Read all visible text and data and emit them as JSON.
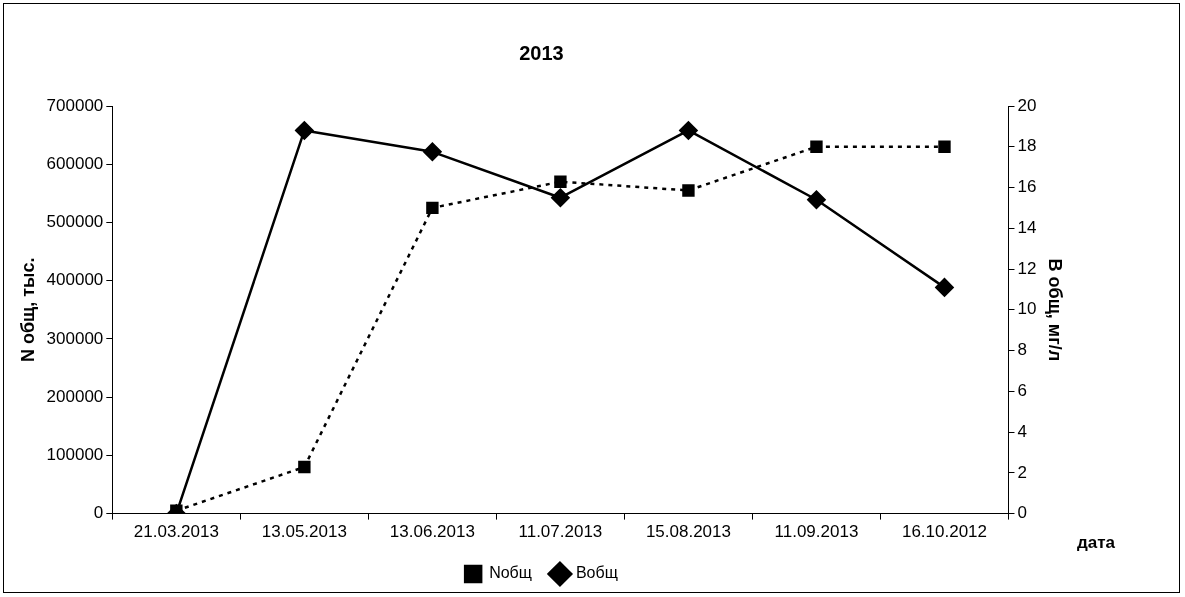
{
  "chart_data": {
    "type": "line",
    "title": "2013",
    "xlabel": "дата",
    "ylabel": "N общ, тыс.",
    "y2label": "В общ, мг/л",
    "categories": [
      "21.03.2013",
      "13.05.2013",
      "13.06.2013",
      "11.07.2013",
      "15.08.2013",
      "11.09.2013",
      "16.10.2012"
    ],
    "series": [
      {
        "name": "Nобщ",
        "color": "#000000",
        "marker": "square",
        "line_style": "dotted",
        "values": [
          5000,
          80000,
          525000,
          570000,
          555000,
          630000,
          630000
        ]
      },
      {
        "name": "Вобщ",
        "color": "#000000",
        "marker": "diamond",
        "line_style": "solid",
        "axis": "y2",
        "values": [
          0,
          18.8,
          17.75,
          15.5,
          18.8,
          15.4,
          11.1
        ]
      }
    ],
    "ylim": [
      0,
      700000
    ],
    "yticks": [
      0,
      100000,
      200000,
      300000,
      400000,
      500000,
      600000,
      700000
    ],
    "y2lim": [
      0,
      20
    ],
    "y2ticks": [
      0,
      2,
      4,
      6,
      8,
      10,
      12,
      14,
      16,
      18,
      20
    ],
    "grid": false,
    "legend": "bottom"
  }
}
